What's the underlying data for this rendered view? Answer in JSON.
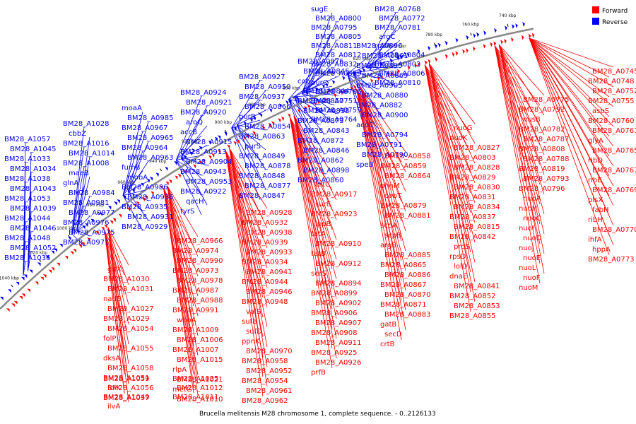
{
  "caption": "Brucella melitensis M28 chromosome 1, complete sequence. - 0..2126133",
  "legend": [
    {
      "label": "Forward",
      "color": "#ff0000"
    },
    {
      "label": "Reverse",
      "color": "#0000ff"
    }
  ],
  "colors": {
    "forward": "#ff0000",
    "reverse": "#0000ff",
    "backbone": "#777777"
  },
  "ticks": [
    "1040 kbp",
    "1020 kbp",
    "1000 kbp",
    "980 kbp",
    "960 kbp",
    "940 kbp",
    "920 kbp",
    "900 kbp",
    "880 kbp",
    "860 kbp",
    "840 kbp",
    "820 kbp",
    "800 kbp",
    "780 kbp",
    "760 kbp",
    "740 kbp"
  ],
  "reverse_labels": [
    "BM28_A1057",
    "BM28_A1045",
    "BM28_A1033",
    "BM28_A1034",
    "BM28_A1038",
    "BM28_A1043",
    "BM28_A1053",
    "BM28_A1039",
    "BM28_A1044",
    "BM28_A1046",
    "BM28_A1048",
    "BM28_A1052",
    "BM28_A1036",
    "BM28_A1028",
    "cbbZ",
    "BM28_A1016",
    "BM28_A1014",
    "BM28_A1008",
    "maeB",
    "glnA",
    "BM28_A0984",
    "BM28_A0981",
    "BM28_A0977",
    "BM28_A0976",
    "BM28_A0975",
    "BM28_A0971",
    "moaA",
    "BM28_A0985",
    "BM28_A0967",
    "BM28_A0965",
    "BM28_A0964",
    "BM28_A0963",
    "fumB",
    "mobA",
    "BM28_A0986",
    "BM28_A0936",
    "BM28_A0935",
    "BM28_A0931",
    "BM28_A0929",
    "BM28_A0924",
    "BM28_A0921",
    "BM28_A0920",
    "aroQ",
    "accB",
    "BM28_A0915",
    "BM28_A0913",
    "BM28_A0904",
    "BM28_A0943",
    "BM28_A0953",
    "BM28_A0922",
    "qacH",
    "tyrS",
    "BM28_A0927",
    "BM28_A0950",
    "BM28_A0937",
    "BM28_A0866",
    "purB",
    "BM28_A0854",
    "BM28_A0863",
    "purS",
    "BM28_A0849",
    "BM28_A0878",
    "BM28_A0848",
    "BM28_A0877",
    "BM28_A0847",
    "BM28_A0876",
    "BM28_A0845",
    "cobS",
    "BM28_A0844",
    "BM28_A0857",
    "BM28_A0838",
    "BM28_A0873",
    "BM28_A0843",
    "BM28_A0872",
    "BM28_A0846",
    "BM28_A0862",
    "BM28_A0898",
    "BM28_A0860",
    "BM28_A0896",
    "BM28_A0861",
    "BM28_A0895",
    "BM28_A0869",
    "BM28_A0905",
    "BM28_A0880",
    "BM28_A0882",
    "BM28_A0900",
    "accC",
    "BM28_A0794",
    "BM28_A0791",
    "BM28_A0790",
    "speB",
    "sugE",
    "BM28_A0800",
    "BM28_A0795",
    "BM28_A0805",
    "BM28_A0811",
    "BM28_A0812",
    "BM28_A0832",
    "BM28_A0839",
    "purC",
    "BM28_A0766",
    "BM28_A0751",
    "BM28_A0759",
    "BM28_A0764",
    "BM28_A0768",
    "BM28_A0772",
    "BM28_A0781",
    "argC",
    "rplM",
    "BM28_A0804",
    "BM28_A0802",
    "BM28_A0806",
    "BM28_A0810"
  ],
  "forward_labels": [
    "BM28_A0745",
    "BM28_A0748",
    "BM28_A0752",
    "BM28_A0755",
    "aspS",
    "BM28_A0760",
    "BM28_A0761",
    "glyA",
    "BM28_A0765",
    "ribD",
    "BM28_A0767",
    "ribE",
    "BM28_A0769",
    "plsX",
    "fabH",
    "ribH",
    "BM28_A0770",
    "ihfA",
    "hppA",
    "BM28_A0773",
    "BM28_A0775",
    "BM28_A0792",
    "nusB",
    "BM28_A0782",
    "BM28_A0787",
    "BM28_A0808",
    "BM28_A0788",
    "BM28_A0819",
    "BM28_A0793",
    "BM28_A0796",
    "nuoA",
    "nuoH",
    "nuoC",
    "nuoI",
    "nuoD",
    "nuoJ",
    "nuoE",
    "nuoL",
    "nuoF",
    "nuoM",
    "nuoG",
    "nuoK",
    "BM28_A0827",
    "BM28_A0803",
    "BM28_A0828",
    "BM28_A0829",
    "BM28_A0830",
    "BM28_A0831",
    "BM28_A0834",
    "BM28_A0837",
    "BM28_A0815",
    "BM28_A0842",
    "proS",
    "rpsD",
    "lolD",
    "dnaE",
    "BM28_A0841",
    "BM28_A0852",
    "BM28_A0853",
    "BM28_A0855",
    "BM28_A0858",
    "BM28_A0859",
    "BM28_A0864",
    "phnM",
    "cobT",
    "BM28_A0879",
    "BM28_A0881",
    "scpA",
    "scpB",
    "argS",
    "BM28_A0885",
    "BM28_A0865",
    "BM28_A0886",
    "BM28_A0867",
    "BM28_A0870",
    "BM28_A0871",
    "BM28_A0883",
    "gatB",
    "secD",
    "crtB",
    "tatC",
    "BM28_A0917",
    "surE",
    "BM28_A0923",
    "lppB",
    "tatA",
    "BM28_A0910",
    "tatB",
    "BM28_A0912",
    "serS",
    "BM28_A0894",
    "BM28_A0899",
    "BM28_A0902",
    "BM28_A0906",
    "BM28_A0907",
    "BM28_A0908",
    "BM28_A0911",
    "BM28_A0925",
    "BM28_A0926",
    "prfB",
    "BM28_A0928",
    "BM28_A0932",
    "BM28_A0938",
    "BM28_A0939",
    "BM28_A0933",
    "BM28_A0934",
    "BM28_A0941",
    "BM28_A0944",
    "BM28_A0946",
    "BM28_A0948",
    "valS",
    "sufB",
    "sufD",
    "ppnK",
    "BM28_A0970",
    "BM28_A0958",
    "BM28_A0952",
    "BM28_A0954",
    "BM28_A0961",
    "BM28_A0962",
    "BM28_A0966",
    "BM28_A0974",
    "BM28_A0990",
    "BM28_A0973",
    "BM28_A0978",
    "BM28_A0987",
    "BM28_A0988",
    "BM28_A0991",
    "wboA",
    "BM28_A1009",
    "BM28_A1006",
    "BM28_A1007",
    "BM28_A1015",
    "rlpA",
    "BM28_A1021",
    "metG",
    "BM28_A1010",
    "BM28_A1011",
    "BM28_A1012",
    "BM28_A1035",
    "gltX",
    "BM28_A1030",
    "BM28_A1031",
    "nadE",
    "BM28_A1027",
    "BM28_A1029",
    "BM28_A1054",
    "folP",
    "BM28_A1055",
    "dksA",
    "BM28_A1058",
    "BM28_A1051",
    "BM28_A1056",
    "BM28_A1037",
    "folK",
    "BM28_A1059",
    "ilvA",
    "BM28_A1049"
  ]
}
